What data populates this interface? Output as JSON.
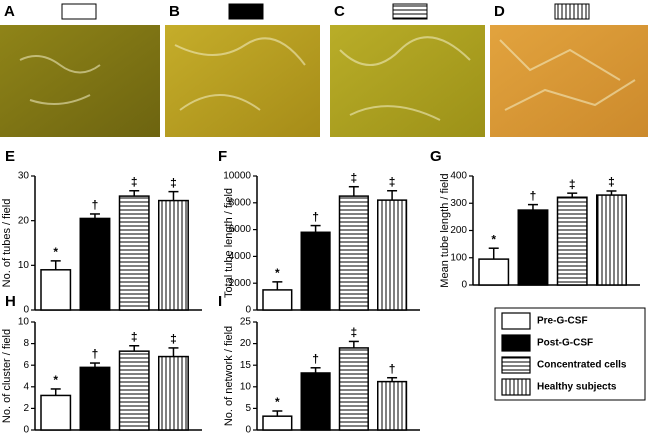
{
  "image_panels": [
    {
      "label": "A"
    },
    {
      "label": "B"
    },
    {
      "label": "C"
    },
    {
      "label": "D"
    }
  ],
  "series_names": [
    "Pre-G-CSF",
    "Post-G-CSF",
    "Concentrated cells",
    "Healthy subjects"
  ],
  "fills": [
    "white",
    "black",
    "hlines",
    "vlines"
  ],
  "chart_data": [
    {
      "type": "bar",
      "panel": "E",
      "ylabel": "No. of tubes / field",
      "ylim": [
        0,
        30
      ],
      "yticks": [
        0,
        10,
        20,
        30
      ],
      "values": [
        9,
        20.5,
        25.5,
        24.5
      ],
      "errors": [
        2,
        1,
        1.2,
        2
      ],
      "annotations": [
        "*",
        "†",
        "‡",
        "‡"
      ]
    },
    {
      "type": "bar",
      "panel": "F",
      "ylabel": "Total tube length / field",
      "ylim": [
        0,
        10000
      ],
      "yticks": [
        0,
        2000,
        4000,
        6000,
        8000,
        10000
      ],
      "values": [
        1500,
        5800,
        8500,
        8200
      ],
      "errors": [
        600,
        500,
        700,
        700
      ],
      "annotations": [
        "*",
        "†",
        "‡",
        "‡"
      ]
    },
    {
      "type": "bar",
      "panel": "G",
      "ylabel": "Mean tube length / field",
      "ylim": [
        0,
        400
      ],
      "yticks": [
        0,
        100,
        200,
        300,
        400
      ],
      "values": [
        95,
        275,
        322,
        330
      ],
      "errors": [
        40,
        20,
        15,
        15
      ],
      "annotations": [
        "*",
        "†",
        "‡",
        "‡"
      ]
    },
    {
      "type": "bar",
      "panel": "H",
      "ylabel": "No. of cluster / field",
      "ylim": [
        0,
        10
      ],
      "yticks": [
        0,
        2,
        4,
        6,
        8,
        10
      ],
      "values": [
        3.2,
        5.8,
        7.3,
        6.8
      ],
      "errors": [
        0.6,
        0.4,
        0.5,
        0.8
      ],
      "annotations": [
        "*",
        "†",
        "‡",
        "‡"
      ]
    },
    {
      "type": "bar",
      "panel": "I",
      "ylabel": "No. of network / field",
      "ylim": [
        0,
        25
      ],
      "yticks": [
        0,
        5,
        10,
        15,
        20,
        25
      ],
      "values": [
        3.2,
        13.2,
        19,
        11.2
      ],
      "errors": [
        1.2,
        1.2,
        1.5,
        0.9
      ],
      "annotations": [
        "*",
        "†",
        "‡",
        "†"
      ]
    }
  ]
}
